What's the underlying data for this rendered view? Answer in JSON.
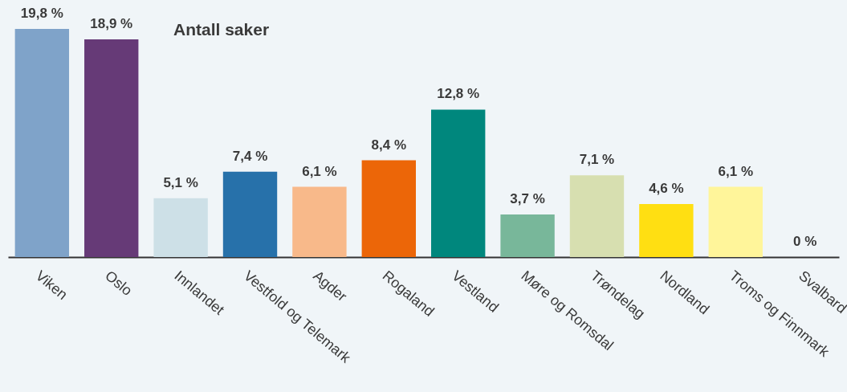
{
  "chart_data": {
    "type": "bar",
    "title": "Antall saker",
    "categories": [
      "Viken",
      "Oslo",
      "Innlandet",
      "Vestfold og Telemark",
      "Agder",
      "Rogaland",
      "Vestland",
      "Møre og Romsdal",
      "Trøndelag",
      "Nordland",
      "Troms og Finnmark",
      "Svalbard"
    ],
    "values": [
      19.8,
      18.9,
      5.1,
      7.4,
      6.1,
      8.4,
      12.8,
      3.7,
      7.1,
      4.6,
      6.1,
      0
    ],
    "value_labels": [
      "19,8 %",
      "18,9 %",
      "5,1 %",
      "7,4 %",
      "6,1 %",
      "8,4 %",
      "12,8 %",
      "3,7 %",
      "7,1 %",
      "4,6 %",
      "6,1 %",
      "0 %"
    ],
    "colors": [
      "#7fa3c9",
      "#663a77",
      "#cde0e7",
      "#2771aa",
      "#f8b98a",
      "#ec6608",
      "#00877d",
      "#78b79a",
      "#d7dfb0",
      "#ffdf12",
      "#fff59a",
      "#dde6ec"
    ],
    "orientation": "vertical"
  }
}
